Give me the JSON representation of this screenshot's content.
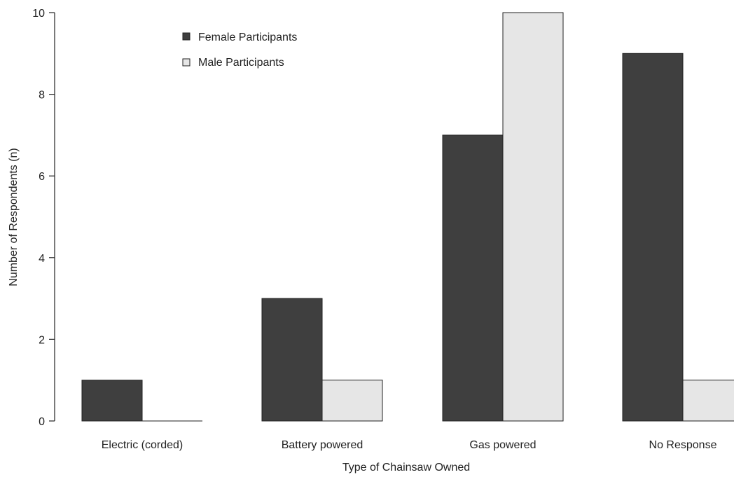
{
  "chart_data": {
    "type": "bar",
    "title": "",
    "xlabel": "Type of Chainsaw Owned",
    "ylabel": "Number of Respondents (n)",
    "categories": [
      "Electric (corded)",
      "Battery powered",
      "Gas powered",
      "No Response"
    ],
    "series": [
      {
        "name": "Female Participants",
        "values": [
          1,
          3,
          7,
          9
        ],
        "color": "#3f3f3f"
      },
      {
        "name": "Male Participants",
        "values": [
          0,
          1,
          10,
          1
        ],
        "color": "#e6e6e6"
      }
    ],
    "yticks": [
      "0",
      "2",
      "4",
      "6",
      "8",
      "10"
    ],
    "ylim": [
      0,
      10
    ],
    "grid": false,
    "legend_position": "top-left"
  }
}
